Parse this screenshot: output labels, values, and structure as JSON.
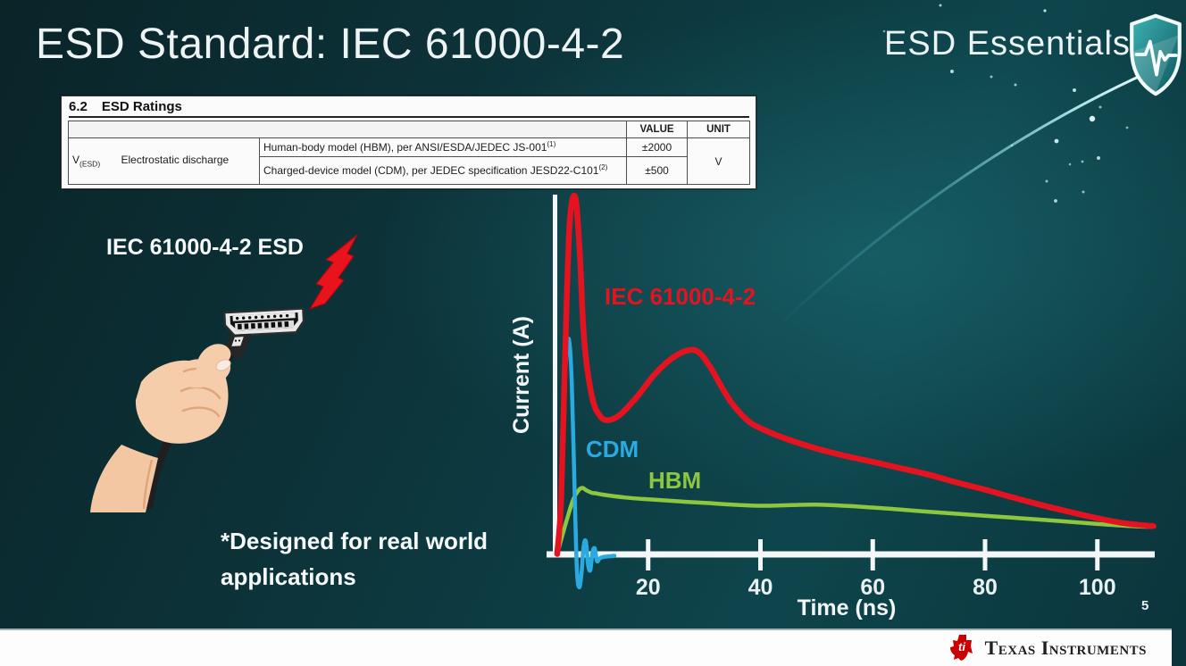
{
  "slide": {
    "title": "ESD Standard: IEC 61000-4-2",
    "page_number": "5"
  },
  "brand": {
    "series_title": "ESD Essentials",
    "shield_icon": "shield-pulse-icon"
  },
  "ratings_table": {
    "section_number": "6.2",
    "section_title": "ESD Ratings",
    "col_value": "VALUE",
    "col_unit": "UNIT",
    "param_symbol": "V",
    "param_symbol_sub": "(ESD)",
    "param_name": "Electrostatic discharge",
    "rows": [
      {
        "model": "Human-body model (HBM), per ANSI/ESDA/JEDEC JS-001",
        "footnote_ref": "(1)",
        "value": "±2000"
      },
      {
        "model": "Charged-device model (CDM), per JEDEC specification JESD22-C101",
        "footnote_ref": "(2)",
        "value": "±500"
      }
    ],
    "unit": "V"
  },
  "illustration": {
    "caption": "IEC 61000-4-2 ESD",
    "footnote": "*Designed for real world\napplications",
    "bolt_color": "#e8131c"
  },
  "footer": {
    "logo_text": "Texas Instruments",
    "logo_color": "#cc0000"
  },
  "chart_data": {
    "type": "line",
    "title": "",
    "xlabel": "Time (ns)",
    "ylabel": "Current (A)",
    "x_ticks": [
      20,
      40,
      60,
      80,
      100
    ],
    "xlim": [
      0,
      110
    ],
    "ylim": [
      -0.12,
      1.05
    ],
    "y_units": "relative current, red IEC peak = 1.0 (y axis unnumbered)",
    "grid": false,
    "legend_position": "inline labels next to curves",
    "series": [
      {
        "name": "IEC 61000-4-2",
        "color": "#e4131f",
        "points": [
          [
            3.8,
            0
          ],
          [
            4.5,
            0.15
          ],
          [
            5.2,
            0.55
          ],
          [
            6,
            0.92
          ],
          [
            7,
            1.0
          ],
          [
            7.8,
            0.85
          ],
          [
            8.6,
            0.6
          ],
          [
            10,
            0.44
          ],
          [
            11.5,
            0.385
          ],
          [
            13,
            0.375
          ],
          [
            15,
            0.39
          ],
          [
            18,
            0.44
          ],
          [
            21,
            0.5
          ],
          [
            24,
            0.545
          ],
          [
            27,
            0.57
          ],
          [
            29,
            0.565
          ],
          [
            31,
            0.525
          ],
          [
            33,
            0.47
          ],
          [
            35,
            0.42
          ],
          [
            38,
            0.37
          ],
          [
            41,
            0.345
          ],
          [
            45,
            0.32
          ],
          [
            50,
            0.295
          ],
          [
            55,
            0.275
          ],
          [
            60,
            0.258
          ],
          [
            65,
            0.24
          ],
          [
            70,
            0.222
          ],
          [
            75,
            0.2
          ],
          [
            80,
            0.18
          ],
          [
            85,
            0.158
          ],
          [
            90,
            0.137
          ],
          [
            95,
            0.118
          ],
          [
            100,
            0.1
          ],
          [
            104,
            0.088
          ],
          [
            107,
            0.082
          ],
          [
            110,
            0.078
          ]
        ]
      },
      {
        "name": "CDM",
        "color": "#29abe2",
        "points": [
          [
            3.8,
            0
          ],
          [
            4.3,
            0.1
          ],
          [
            4.8,
            0.35
          ],
          [
            5.4,
            0.55
          ],
          [
            5.9,
            0.6
          ],
          [
            6.4,
            0.48
          ],
          [
            6.9,
            0.18
          ],
          [
            7.3,
            -0.04
          ],
          [
            7.7,
            -0.093
          ],
          [
            8.1,
            -0.06
          ],
          [
            8.5,
            0.02
          ],
          [
            8.9,
            0.035
          ],
          [
            9.3,
            -0.03
          ],
          [
            9.7,
            -0.045
          ],
          [
            10.1,
            0.005
          ],
          [
            10.5,
            0.015
          ],
          [
            10.9,
            -0.02
          ],
          [
            11.4,
            -0.012
          ],
          [
            12.2,
            -0.008
          ],
          [
            13.5,
            -0.006
          ],
          [
            14,
            -0.005
          ]
        ]
      },
      {
        "name": "HBM",
        "color": "#8dc63f",
        "points": [
          [
            3.8,
            0
          ],
          [
            4.6,
            0.045
          ],
          [
            5.6,
            0.1
          ],
          [
            6.6,
            0.15
          ],
          [
            7.6,
            0.178
          ],
          [
            8.3,
            0.185
          ],
          [
            9,
            0.178
          ],
          [
            10,
            0.171
          ],
          [
            10.6,
            0.17
          ],
          [
            12,
            0.166
          ],
          [
            16,
            0.158
          ],
          [
            20,
            0.153
          ],
          [
            30,
            0.143
          ],
          [
            40,
            0.135
          ],
          [
            50,
            0.138
          ],
          [
            60,
            0.13
          ],
          [
            70,
            0.118
          ],
          [
            80,
            0.107
          ],
          [
            90,
            0.096
          ],
          [
            100,
            0.084
          ],
          [
            106,
            0.078
          ],
          [
            110,
            0.076
          ]
        ]
      }
    ]
  }
}
